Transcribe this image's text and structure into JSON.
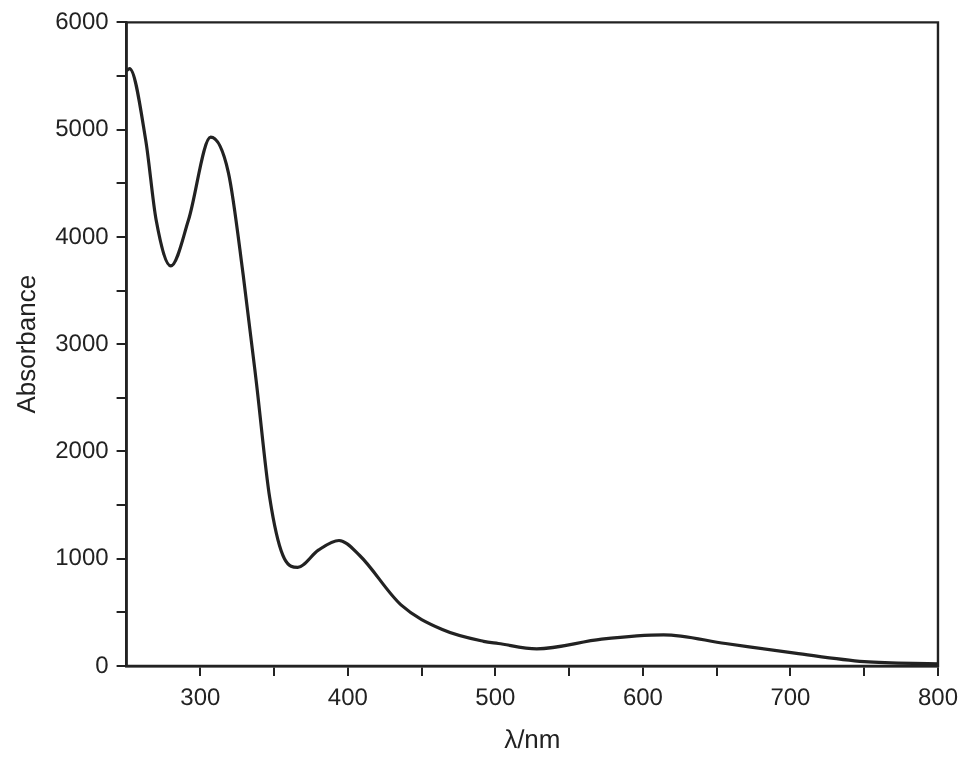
{
  "chart_data": {
    "type": "line",
    "xlabel": "λ/nm",
    "ylabel": "Absorbance",
    "x": [
      250,
      252,
      263,
      270,
      280,
      292,
      307,
      319,
      329,
      338,
      347,
      357,
      366,
      380,
      394,
      408,
      436,
      464,
      492,
      502,
      528,
      572,
      614,
      656,
      703,
      750,
      800
    ],
    "series": [
      {
        "color": "#222222",
        "values": [
          5550,
          5570,
          4900,
          4160,
          3730,
          4160,
          4930,
          4600,
          3650,
          2640,
          1570,
          1000,
          920,
          1080,
          1170,
          1030,
          570,
          340,
          230,
          210,
          160,
          250,
          290,
          210,
          120,
          40,
          20
        ]
      }
    ],
    "xlim": [
      250,
      800
    ],
    "xticks": [
      300,
      {
        "value": 350,
        "label": null
      },
      400,
      {
        "value": 450,
        "label": null
      },
      500,
      {
        "value": 550,
        "label": null
      },
      600,
      {
        "value": 650,
        "label": null
      },
      700,
      {
        "value": 750,
        "label": null
      },
      800
    ],
    "ylim": [
      0,
      6000
    ],
    "yticks": [
      0,
      {
        "value": 500,
        "label": null
      },
      1000,
      {
        "value": 1500,
        "label": null
      },
      2000,
      {
        "value": 2500,
        "label": null
      },
      3000,
      {
        "value": 3500,
        "label": null
      },
      4000,
      {
        "value": 4500,
        "label": null
      },
      5000,
      {
        "value": 5500,
        "label": null
      },
      6000
    ],
    "grid": false,
    "legend": false,
    "marker": "none",
    "line_style": "solid"
  }
}
